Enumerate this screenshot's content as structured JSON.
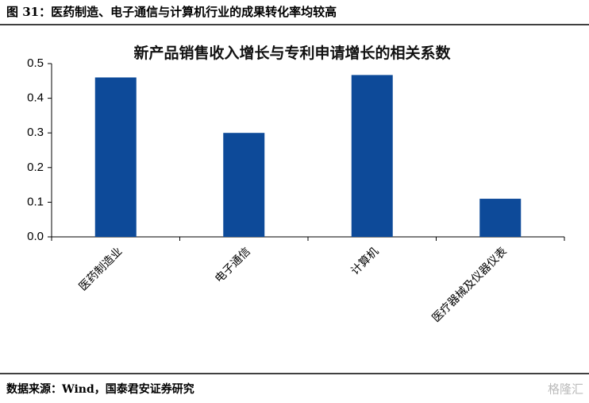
{
  "header": {
    "title": "图 31：医药制造、电子通信与计算机行业的成果转化率均较高"
  },
  "chart_data": {
    "type": "bar",
    "title": "新产品销售收入增长与专利申请增长的相关系数",
    "categories": [
      "医药制造业",
      "电子通信",
      "计算机",
      "医疗器械及仪器仪表"
    ],
    "values": [
      0.46,
      0.3,
      0.467,
      0.11
    ],
    "color": "#0d4a99",
    "ylim": [
      0,
      0.5
    ],
    "yticks": [
      {
        "value": 0,
        "label": "0.0"
      },
      0.1,
      0.2,
      0.3,
      0.4,
      0.5
    ],
    "grid": false
  },
  "footer": {
    "source": "数据来源：Wind，国泰君安证券研究",
    "watermark": "格隆汇"
  }
}
